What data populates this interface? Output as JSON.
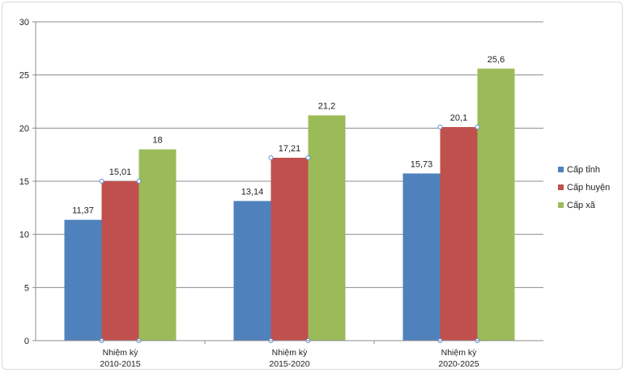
{
  "chart_data": {
    "type": "bar",
    "categories": [
      [
        "Nhiệm kỳ",
        "2010-2015"
      ],
      [
        "Nhiệm kỳ",
        "2015-2020"
      ],
      [
        "Nhiệm kỳ",
        "2020-2025"
      ]
    ],
    "series": [
      {
        "name": "Cấp tỉnh",
        "values": [
          11.37,
          13.14,
          15.73
        ],
        "labels": [
          "11,37",
          "13,14",
          "15,73"
        ],
        "color": "#4f81bd"
      },
      {
        "name": "Cấp huyện",
        "values": [
          15.01,
          17.21,
          20.1
        ],
        "labels": [
          "15,01",
          "17,21",
          "20,1"
        ],
        "color": "#c0504d"
      },
      {
        "name": "Cấp xã",
        "values": [
          18,
          21.2,
          25.6
        ],
        "labels": [
          "18",
          "21,2",
          "25,6"
        ],
        "color": "#9bbb59"
      }
    ],
    "ylim": [
      0,
      30
    ],
    "yticks": [
      0,
      5,
      10,
      15,
      20,
      25,
      30
    ],
    "grid": true,
    "legend_position": "right"
  }
}
